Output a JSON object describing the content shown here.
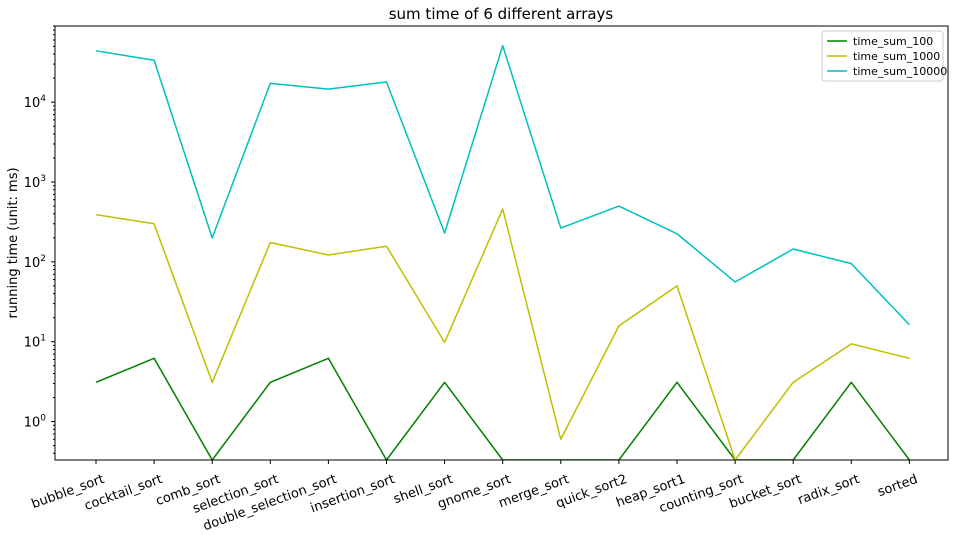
{
  "chart_data": {
    "type": "line",
    "title": "sum time of 6 different arrays",
    "xlabel": "",
    "ylabel": "running time (unit: ms)",
    "yscale": "log",
    "ylim": [
      0.33,
      90000
    ],
    "grid": false,
    "legend_placement": "top-right",
    "categories": [
      "bubble_sort",
      "cocktail_sort",
      "comb_sort",
      "selection_sort",
      "double_selection_sort",
      "insertion_sort",
      "shell_sort",
      "gnome_sort",
      "merge_sort",
      "quick_sort2",
      "heap_sort1",
      "counting_sort",
      "bucket_sort",
      "radix_sort",
      "sorted"
    ],
    "yticks": [
      {
        "value": 1,
        "exp": "0"
      },
      {
        "value": 10,
        "exp": "1"
      },
      {
        "value": 100,
        "exp": "2"
      },
      {
        "value": 1000,
        "exp": "3"
      },
      {
        "value": 10000,
        "exp": "4"
      }
    ],
    "ytick_base": "10",
    "series": [
      {
        "name": "time_sum_100",
        "color": "#008000",
        "values": [
          3.1,
          6.2,
          0,
          3.1,
          6.2,
          0,
          3.1,
          0,
          0,
          0,
          3.1,
          0,
          0,
          3.1,
          0
        ]
      },
      {
        "name": "time_sum_1000",
        "color": "#bfbf00",
        "values": [
          390,
          300,
          3.1,
          175,
          122,
          157,
          9.8,
          460,
          0.6,
          15.8,
          50,
          0,
          3.1,
          9.4,
          6.2
        ]
      },
      {
        "name": "time_sum_10000",
        "color": "#00bfbf",
        "values": [
          44000,
          33500,
          200,
          17200,
          14600,
          17900,
          230,
          51000,
          265,
          500,
          225,
          56,
          145,
          95,
          16.3
        ]
      }
    ]
  }
}
